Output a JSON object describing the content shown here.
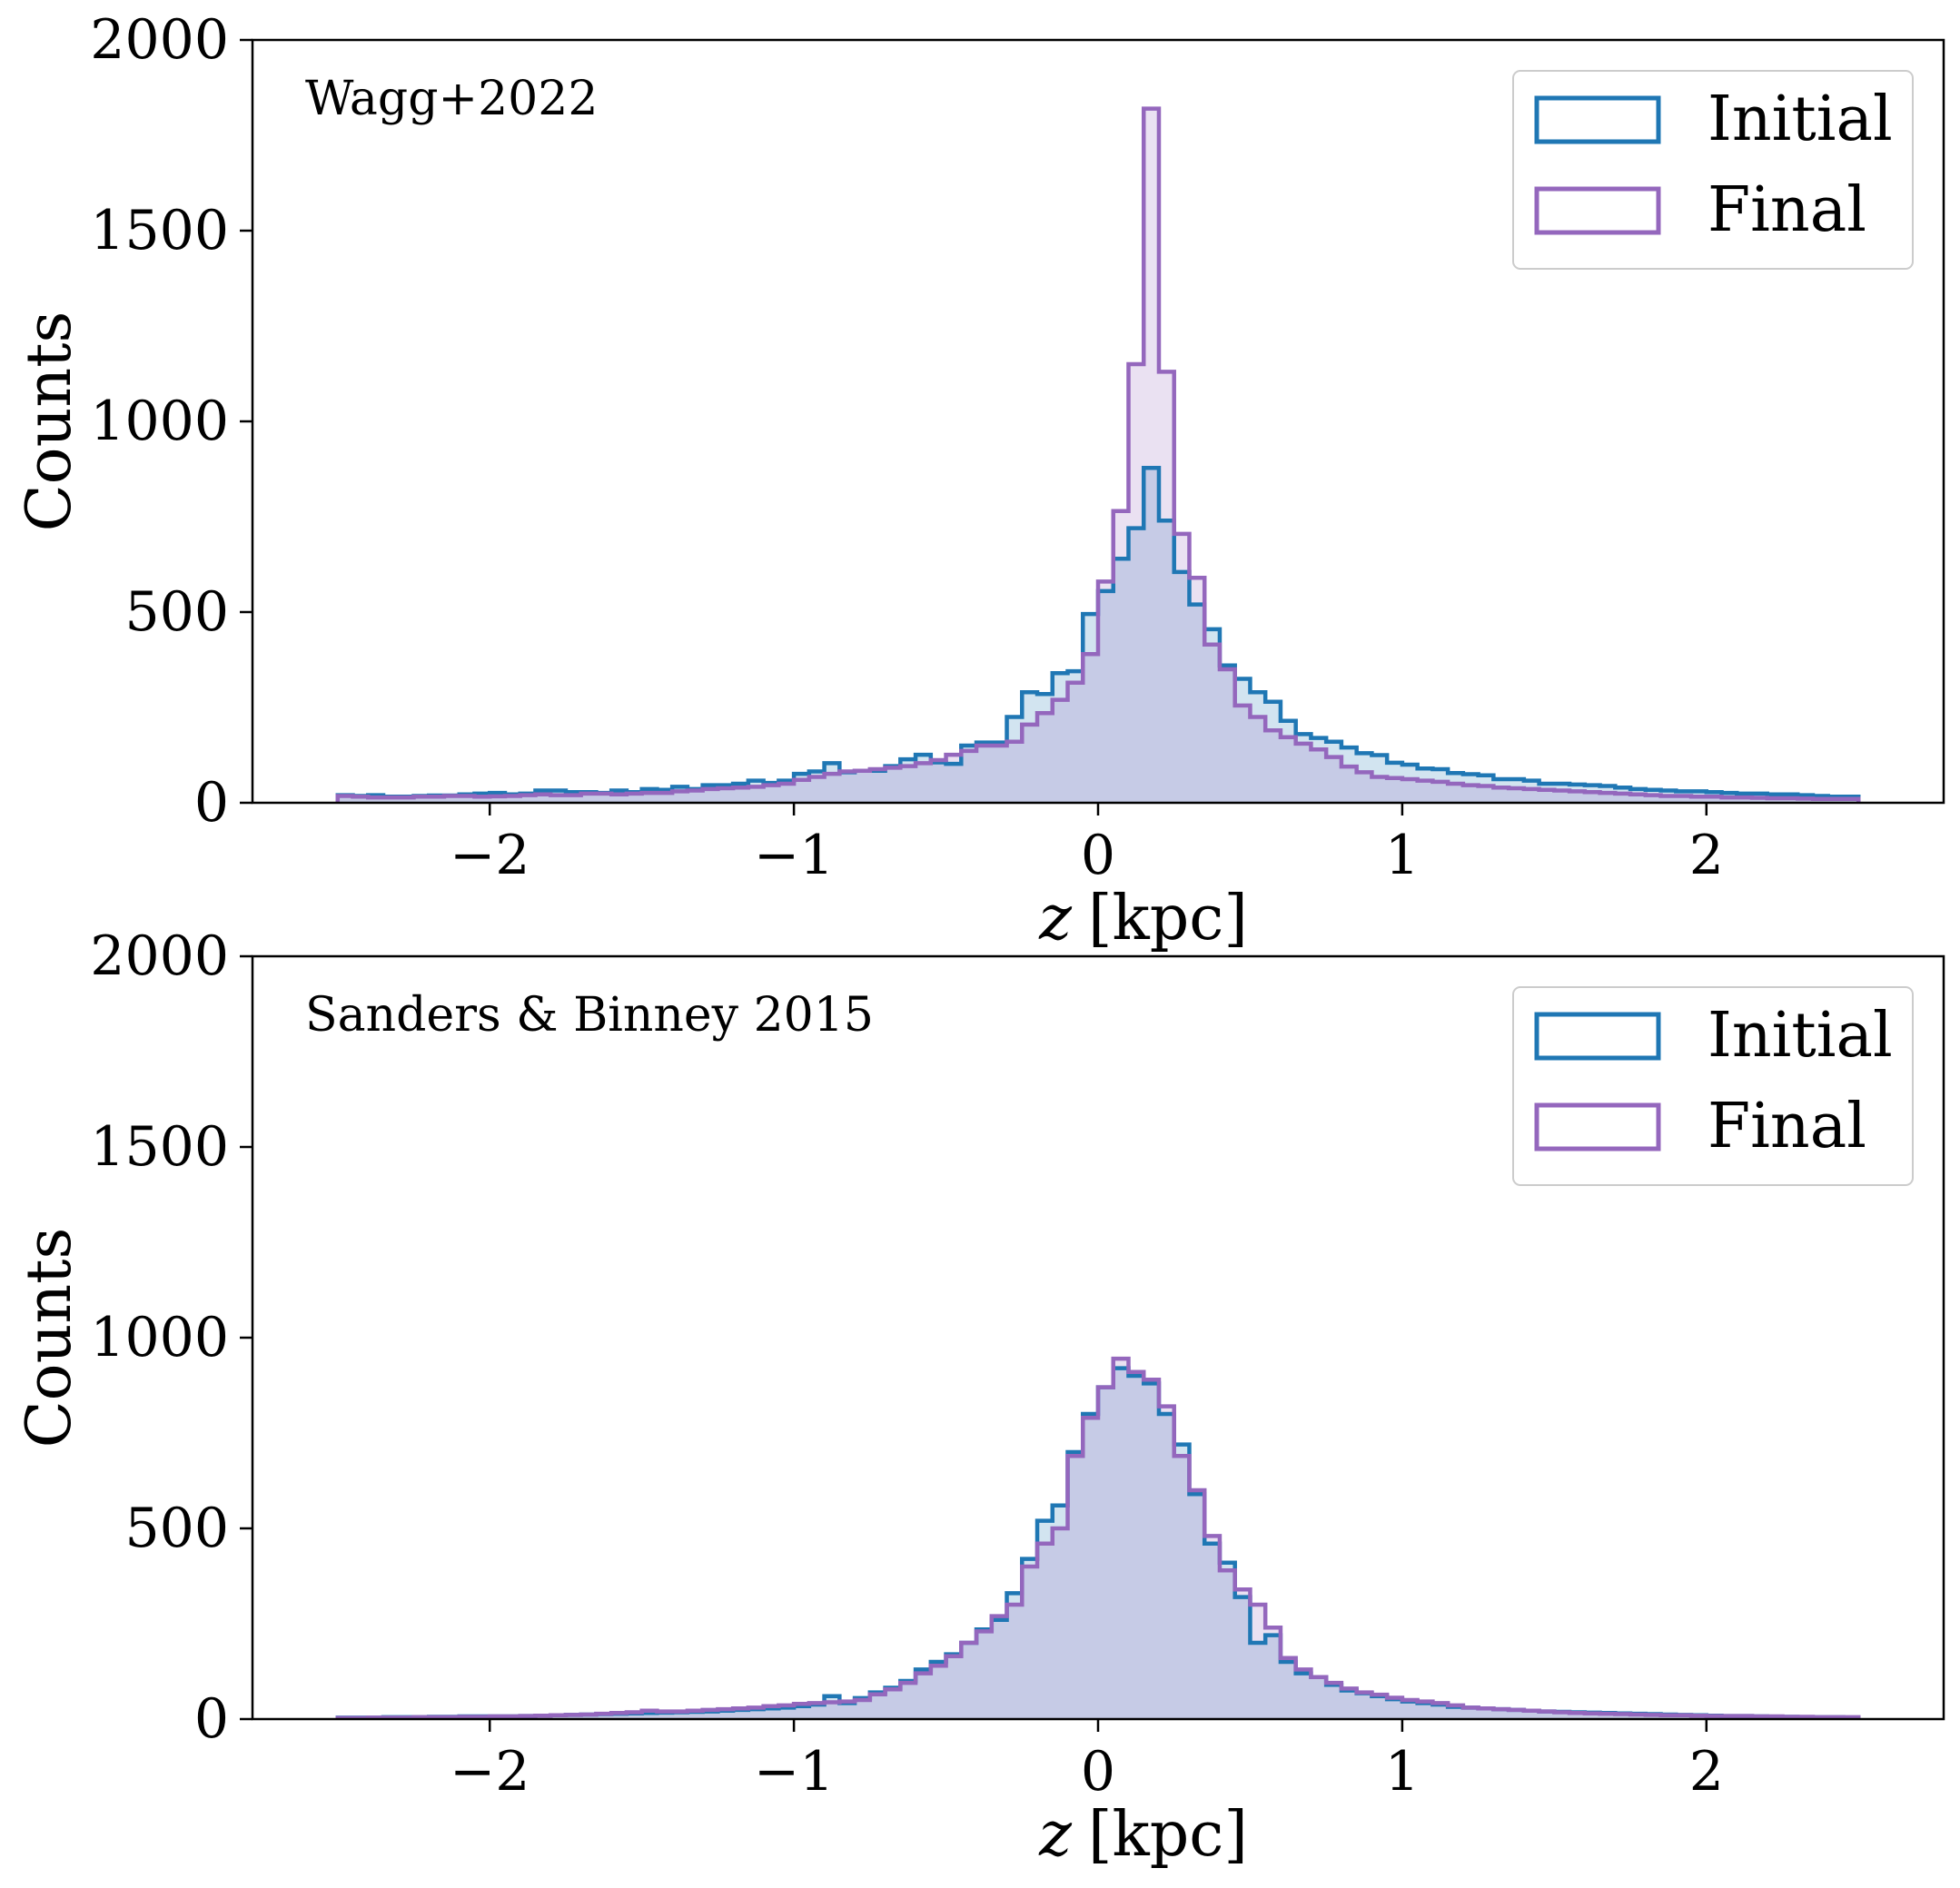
{
  "figure": {
    "colors": {
      "initial": "#1f77b4",
      "final": "#9467bd",
      "initial_fill": "#1f77b4",
      "final_fill": "#9467bd",
      "fill_opacity": 0.2,
      "axes": "#000000",
      "background": "#ffffff"
    }
  },
  "chart_data": [
    {
      "type": "histogram-step",
      "annotation": "Wagg+2022",
      "xlabel_var": "z",
      "xlabel_unit": "[kpc]",
      "ylabel": "Counts",
      "xlim": [
        -2.78,
        2.78
      ],
      "ylim": [
        0,
        2000
      ],
      "xticks": [
        -2,
        -1,
        0,
        1,
        2
      ],
      "xtick_labels": [
        "−2",
        "−1",
        "0",
        "1",
        "2"
      ],
      "yticks": [
        0,
        500,
        1000,
        1500,
        2000
      ],
      "ytick_labels": [
        "0",
        "500",
        "1000",
        "1500",
        "2000"
      ],
      "legend": {
        "position": "upper right",
        "entries": [
          "Initial",
          "Final"
        ]
      },
      "bin_start": -2.5,
      "bin_width": 0.05,
      "series": [
        {
          "name": "Initial",
          "values": [
            20,
            18,
            20,
            16,
            16,
            18,
            19,
            19,
            22,
            24,
            26,
            22,
            24,
            32,
            32,
            28,
            28,
            26,
            32,
            28,
            36,
            34,
            42,
            36,
            46,
            46,
            50,
            58,
            52,
            58,
            76,
            82,
            104,
            80,
            84,
            84,
            96,
            114,
            126,
            106,
            102,
            150,
            158,
            158,
            225,
            290,
            285,
            340,
            345,
            495,
            555,
            640,
            720,
            878,
            740,
            605,
            520,
            455,
            360,
            325,
            290,
            265,
            215,
            180,
            170,
            160,
            145,
            130,
            125,
            105,
            100,
            90,
            88,
            78,
            75,
            72,
            62,
            62,
            58,
            50,
            50,
            48,
            46,
            44,
            40,
            36,
            34,
            32,
            30,
            30,
            28,
            26,
            24,
            24,
            22,
            22,
            20,
            18,
            16,
            16
          ]
        },
        {
          "name": "Final",
          "values": [
            18,
            16,
            14,
            14,
            14,
            16,
            16,
            18,
            18,
            16,
            17,
            18,
            20,
            22,
            20,
            20,
            24,
            24,
            22,
            24,
            26,
            26,
            30,
            32,
            36,
            38,
            40,
            42,
            46,
            50,
            60,
            68,
            76,
            82,
            84,
            88,
            92,
            96,
            104,
            112,
            126,
            136,
            150,
            150,
            160,
            205,
            235,
            270,
            315,
            390,
            580,
            765,
            1150,
            1820,
            1130,
            705,
            590,
            415,
            350,
            255,
            225,
            190,
            172,
            155,
            140,
            120,
            95,
            80,
            68,
            65,
            62,
            58,
            55,
            50,
            46,
            44,
            40,
            38,
            36,
            34,
            32,
            30,
            28,
            26,
            24,
            22,
            20,
            18,
            18,
            16,
            16,
            14,
            14,
            13,
            12,
            12,
            11,
            10,
            10,
            10
          ]
        }
      ]
    },
    {
      "type": "histogram-step",
      "annotation": "Sanders & Binney 2015",
      "xlabel_var": "z",
      "xlabel_unit": "[kpc]",
      "ylabel": "Counts",
      "xlim": [
        -2.78,
        2.78
      ],
      "ylim": [
        0,
        2000
      ],
      "xticks": [
        -2,
        -1,
        0,
        1,
        2
      ],
      "xtick_labels": [
        "−2",
        "−1",
        "0",
        "1",
        "2"
      ],
      "yticks": [
        0,
        500,
        1000,
        1500,
        2000
      ],
      "ytick_labels": [
        "0",
        "500",
        "1000",
        "1500",
        "2000"
      ],
      "legend": {
        "position": "upper right",
        "entries": [
          "Initial",
          "Final"
        ]
      },
      "bin_start": -2.5,
      "bin_width": 0.05,
      "series": [
        {
          "name": "Initial",
          "values": [
            4,
            4,
            4,
            5,
            5,
            5,
            6,
            6,
            7,
            7,
            7,
            7,
            8,
            9,
            10,
            11,
            12,
            13,
            14,
            15,
            16,
            17,
            18,
            19,
            20,
            22,
            24,
            26,
            28,
            30,
            34,
            38,
            60,
            42,
            55,
            70,
            82,
            100,
            130,
            150,
            170,
            200,
            235,
            260,
            330,
            420,
            520,
            560,
            700,
            800,
            870,
            920,
            900,
            880,
            800,
            720,
            590,
            460,
            410,
            320,
            200,
            220,
            150,
            120,
            110,
            90,
            75,
            68,
            60,
            52,
            46,
            42,
            38,
            32,
            30,
            28,
            26,
            24,
            22,
            20,
            19,
            18,
            17,
            16,
            15,
            14,
            13,
            12,
            11,
            10,
            9,
            8,
            8,
            7,
            6,
            6,
            5,
            5,
            5,
            4
          ]
        },
        {
          "name": "Final",
          "values": [
            3,
            3,
            4,
            4,
            4,
            5,
            5,
            5,
            6,
            6,
            7,
            7,
            8,
            9,
            10,
            11,
            12,
            14,
            16,
            18,
            22,
            20,
            20,
            22,
            24,
            26,
            28,
            30,
            34,
            36,
            40,
            42,
            44,
            46,
            50,
            65,
            78,
            95,
            120,
            140,
            165,
            200,
            230,
            270,
            300,
            400,
            460,
            500,
            690,
            790,
            870,
            945,
            910,
            890,
            820,
            690,
            600,
            480,
            390,
            340,
            300,
            240,
            160,
            130,
            110,
            95,
            80,
            70,
            64,
            56,
            50,
            46,
            42,
            36,
            30,
            28,
            26,
            24,
            22,
            20,
            18,
            16,
            15,
            14,
            13,
            12,
            11,
            10,
            10,
            9,
            8,
            8,
            8,
            7,
            7,
            6,
            6,
            5,
            5,
            5
          ]
        }
      ]
    }
  ]
}
